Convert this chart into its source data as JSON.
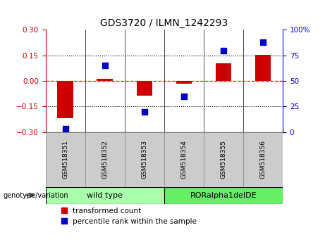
{
  "title": "GDS3720 / ILMN_1242293",
  "samples": [
    "GSM518351",
    "GSM518352",
    "GSM518353",
    "GSM518354",
    "GSM518355",
    "GSM518356"
  ],
  "bar_values": [
    -0.22,
    0.012,
    -0.085,
    -0.018,
    0.105,
    0.152
  ],
  "percentile_values": [
    3,
    65,
    20,
    35,
    80,
    88
  ],
  "bar_color": "#cc0000",
  "scatter_color": "#0000cc",
  "ylim_left": [
    -0.3,
    0.3
  ],
  "ylim_right": [
    0,
    100
  ],
  "yticks_left": [
    -0.3,
    -0.15,
    0,
    0.15,
    0.3
  ],
  "yticks_right": [
    0,
    25,
    50,
    75,
    100
  ],
  "groups": [
    {
      "label": "wild type",
      "start": 0,
      "end": 3,
      "color": "#aaffaa"
    },
    {
      "label": "RORalpha1delDE",
      "start": 3,
      "end": 6,
      "color": "#66ee66"
    }
  ],
  "genotype_label": "genotype/variation",
  "legend_bar_label": "transformed count",
  "legend_scatter_label": "percentile rank within the sample",
  "tick_bg": "#cccccc",
  "bar_width": 0.4,
  "scatter_size": 35
}
